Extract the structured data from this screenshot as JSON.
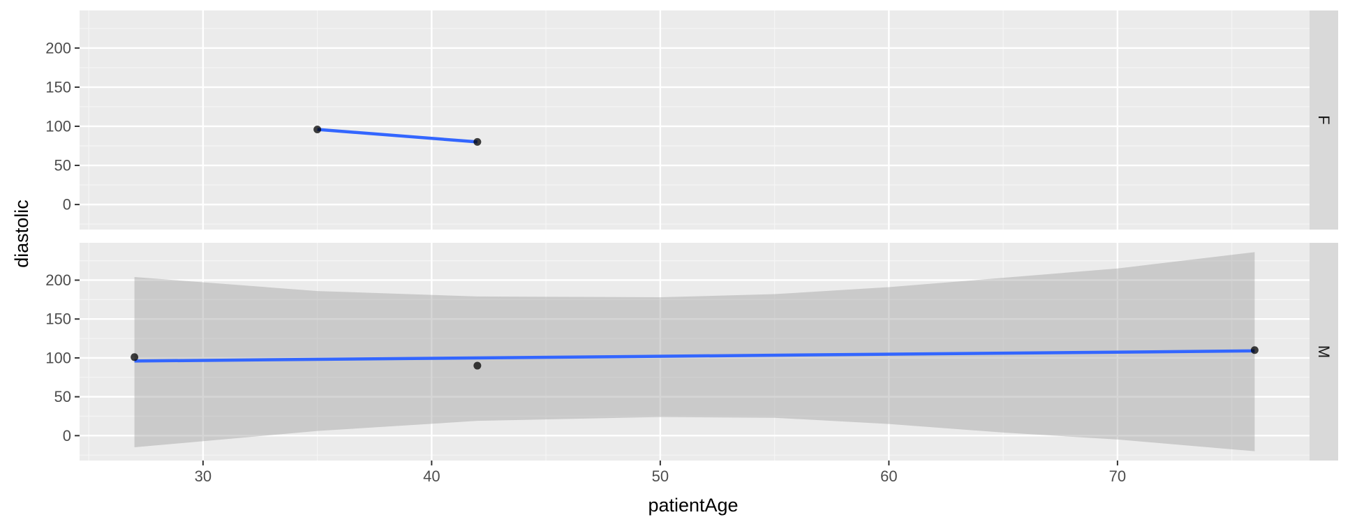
{
  "chart_data": {
    "type": "scatter",
    "xlabel": "patientAge",
    "ylabel": "diastolic",
    "xlim": [
      24.6,
      78.4
    ],
    "ylim": [
      -32,
      248
    ],
    "x_ticks": [
      30,
      40,
      50,
      60,
      70
    ],
    "y_ticks": [
      0,
      50,
      100,
      150,
      200
    ],
    "grid": true,
    "facet_by": "sex",
    "colors": {
      "panel_bg": "#EBEBEB",
      "strip_bg": "#D9D9D9",
      "grid_major": "#FFFFFF",
      "grid_minor": "#F5F5F5",
      "point": "#000000",
      "smooth_line": "#3366FF",
      "confidence_band": "#999999"
    },
    "panels": [
      {
        "strip_label": "F",
        "points": [
          {
            "x": 35,
            "y": 96
          },
          {
            "x": 42,
            "y": 80
          }
        ],
        "smooth_line": [
          {
            "x": 35,
            "y": 96
          },
          {
            "x": 42,
            "y": 80
          }
        ],
        "confidence_band": []
      },
      {
        "strip_label": "M",
        "points": [
          {
            "x": 27,
            "y": 101
          },
          {
            "x": 42,
            "y": 90
          },
          {
            "x": 76,
            "y": 110
          }
        ],
        "smooth_line": [
          {
            "x": 27,
            "y": 96
          },
          {
            "x": 76,
            "y": 109
          }
        ],
        "confidence_band": [
          {
            "x": 27,
            "lo": -15,
            "hi": 204
          },
          {
            "x": 35,
            "lo": 6,
            "hi": 186
          },
          {
            "x": 42,
            "lo": 19,
            "hi": 179
          },
          {
            "x": 50,
            "lo": 24,
            "hi": 178
          },
          {
            "x": 55,
            "lo": 23,
            "hi": 182
          },
          {
            "x": 60,
            "lo": 15,
            "hi": 191
          },
          {
            "x": 65,
            "lo": 4,
            "hi": 203
          },
          {
            "x": 70,
            "lo": -5,
            "hi": 215
          },
          {
            "x": 76,
            "lo": -20,
            "hi": 236
          }
        ]
      }
    ]
  }
}
